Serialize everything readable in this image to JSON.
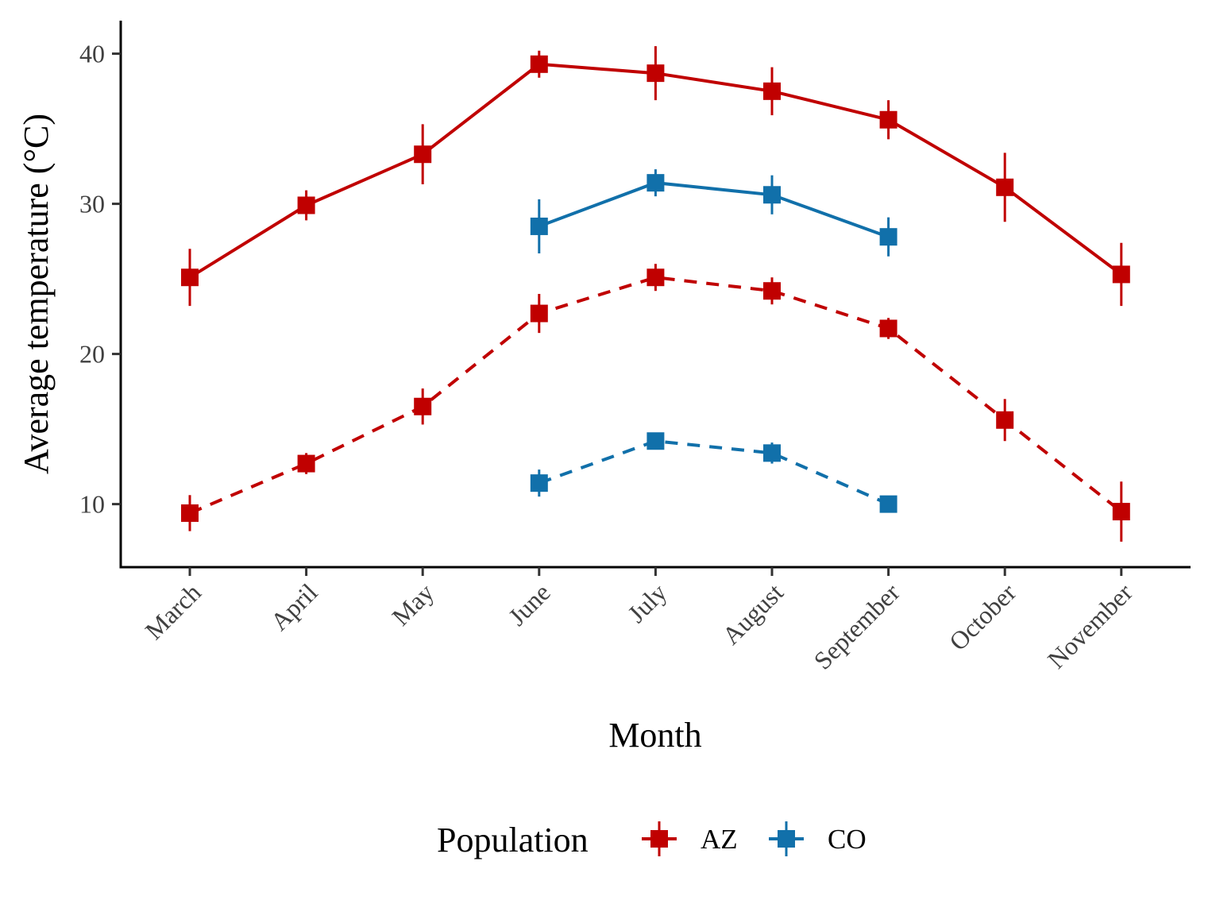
{
  "chart_data": {
    "type": "line",
    "xlabel": "Month",
    "ylabel": "Average temperature (°C)",
    "categories": [
      "March",
      "April",
      "May",
      "June",
      "July",
      "August",
      "September",
      "October",
      "November"
    ],
    "ylim": [
      5.8,
      42.2
    ],
    "yticks": [
      10,
      20,
      30,
      40
    ],
    "grid": false,
    "legend": {
      "title": "Population",
      "position": "bottom",
      "entries": [
        {
          "label": "AZ",
          "color": "#c00000"
        },
        {
          "label": "CO",
          "color": "#1170aa"
        }
      ]
    },
    "series": [
      {
        "population": "AZ",
        "linetype": "solid",
        "color": "#c00000",
        "values": [
          25.1,
          29.9,
          33.3,
          39.3,
          38.7,
          37.5,
          35.6,
          31.1,
          25.3
        ],
        "error": [
          1.9,
          1.0,
          2.0,
          0.9,
          1.8,
          1.6,
          1.3,
          2.3,
          2.1
        ]
      },
      {
        "population": "AZ",
        "linetype": "dashed",
        "color": "#c00000",
        "values": [
          9.4,
          12.7,
          16.5,
          22.7,
          25.1,
          24.2,
          21.7,
          15.6,
          9.5
        ],
        "error": [
          1.2,
          0.7,
          1.2,
          1.3,
          0.9,
          0.9,
          0.7,
          1.4,
          2.0
        ]
      },
      {
        "population": "CO",
        "linetype": "solid",
        "color": "#1170aa",
        "values": [
          null,
          null,
          null,
          28.5,
          31.4,
          30.6,
          27.8,
          null,
          null
        ],
        "error": [
          null,
          null,
          null,
          1.8,
          0.9,
          1.3,
          1.3,
          null,
          null
        ]
      },
      {
        "population": "CO",
        "linetype": "dashed",
        "color": "#1170aa",
        "values": [
          null,
          null,
          null,
          11.4,
          14.2,
          13.4,
          10.0,
          null,
          null
        ],
        "error": [
          null,
          null,
          null,
          0.9,
          0.4,
          0.7,
          0.4,
          null,
          null
        ]
      }
    ]
  }
}
